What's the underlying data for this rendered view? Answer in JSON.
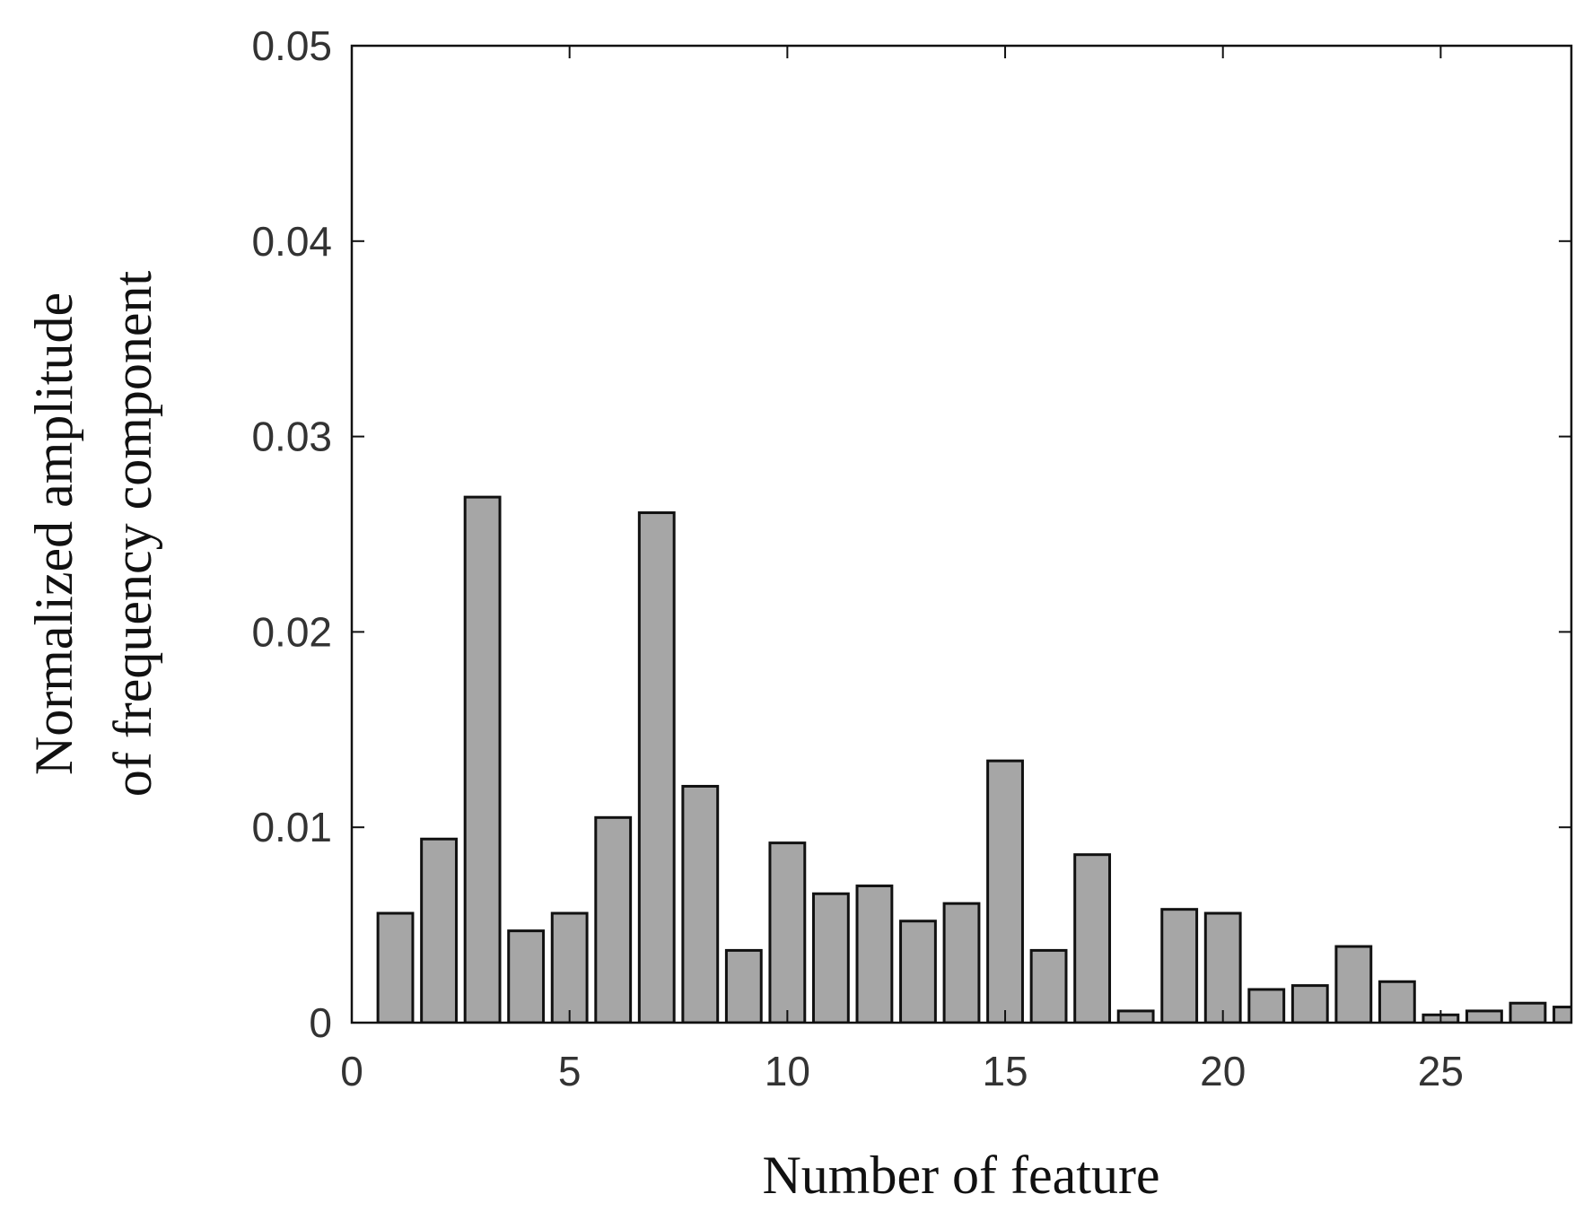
{
  "chart_data": {
    "type": "bar",
    "xlabel": "Number of feature",
    "ylabel": [
      "Normalized amplitude",
      "of frequency component"
    ],
    "x": [
      1,
      2,
      3,
      4,
      5,
      6,
      7,
      8,
      9,
      10,
      11,
      12,
      13,
      14,
      15,
      16,
      17,
      18,
      19,
      20,
      21,
      22,
      23,
      24,
      25,
      26,
      27,
      28
    ],
    "values": [
      0.0056,
      0.0094,
      0.0269,
      0.0047,
      0.0056,
      0.0105,
      0.0261,
      0.0121,
      0.0037,
      0.0092,
      0.0066,
      0.007,
      0.0052,
      0.0061,
      0.0134,
      0.0037,
      0.0086,
      0.0006,
      0.0058,
      0.0056,
      0.0017,
      0.0019,
      0.0039,
      0.0021,
      0.0004,
      0.0006,
      0.001,
      0.0008
    ],
    "color": "#a6a6a6",
    "xlim": [
      0,
      28
    ],
    "xticks": [
      0,
      5,
      10,
      15,
      20,
      25
    ],
    "ylim": [
      0,
      0.05
    ],
    "yticks": [
      0,
      0.01,
      0.02,
      0.03,
      0.04,
      0.05
    ]
  }
}
